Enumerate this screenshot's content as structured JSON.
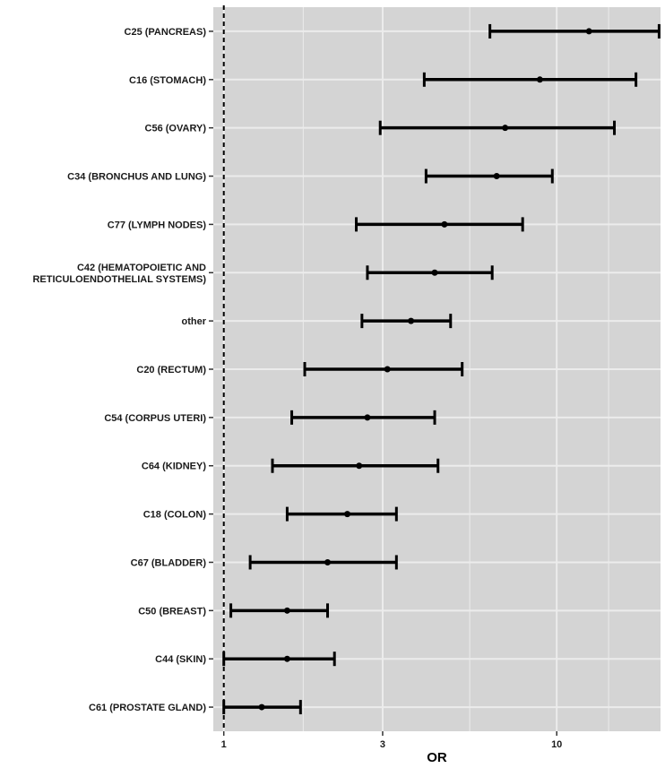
{
  "chart_data": {
    "type": "forest",
    "xlabel": "OR",
    "x_scale": "log",
    "xlim": [
      0.93,
      20.5
    ],
    "xticks": [
      1,
      3,
      10
    ],
    "reference_line": 1,
    "grid": true,
    "panel_color": "#d4d4d4",
    "grid_color": "#ececec",
    "mark_color": "#000000",
    "rows": [
      {
        "label": [
          "C25 (PANCREAS)"
        ],
        "or": 12.5,
        "lo": 6.3,
        "hi": 20.3
      },
      {
        "label": [
          "C16 (STOMACH)"
        ],
        "or": 8.9,
        "lo": 4.0,
        "hi": 17.3
      },
      {
        "label": [
          "C56 (OVARY)"
        ],
        "or": 7.0,
        "lo": 2.95,
        "hi": 14.9
      },
      {
        "label": [
          "C34 (BRONCHUS AND LUNG)"
        ],
        "or": 6.6,
        "lo": 4.05,
        "hi": 9.7
      },
      {
        "label": [
          "C77 (LYMPH NODES)"
        ],
        "or": 4.6,
        "lo": 2.5,
        "hi": 7.9
      },
      {
        "label": [
          "C42 (HEMATOPOIETIC AND",
          "RETICULOENDOTHELIAL SYSTEMS)"
        ],
        "or": 4.3,
        "lo": 2.7,
        "hi": 6.4
      },
      {
        "label": [
          "other"
        ],
        "or": 3.65,
        "lo": 2.6,
        "hi": 4.8
      },
      {
        "label": [
          "C20 (RECTUM)"
        ],
        "or": 3.1,
        "lo": 1.75,
        "hi": 5.2
      },
      {
        "label": [
          "C54 (CORPUS UTERI)"
        ],
        "or": 2.7,
        "lo": 1.6,
        "hi": 4.3
      },
      {
        "label": [
          "C64 (KIDNEY)"
        ],
        "or": 2.55,
        "lo": 1.4,
        "hi": 4.4
      },
      {
        "label": [
          "C18 (COLON)"
        ],
        "or": 2.35,
        "lo": 1.55,
        "hi": 3.3
      },
      {
        "label": [
          "C67 (BLADDER)"
        ],
        "or": 2.05,
        "lo": 1.2,
        "hi": 3.3
      },
      {
        "label": [
          "C50 (BREAST)"
        ],
        "or": 1.55,
        "lo": 1.05,
        "hi": 2.05
      },
      {
        "label": [
          "C44 (SKIN)"
        ],
        "or": 1.55,
        "lo": 1.0,
        "hi": 2.15
      },
      {
        "label": [
          "C61 (PROSTATE GLAND)"
        ],
        "or": 1.3,
        "lo": 1.0,
        "hi": 1.7
      }
    ]
  }
}
